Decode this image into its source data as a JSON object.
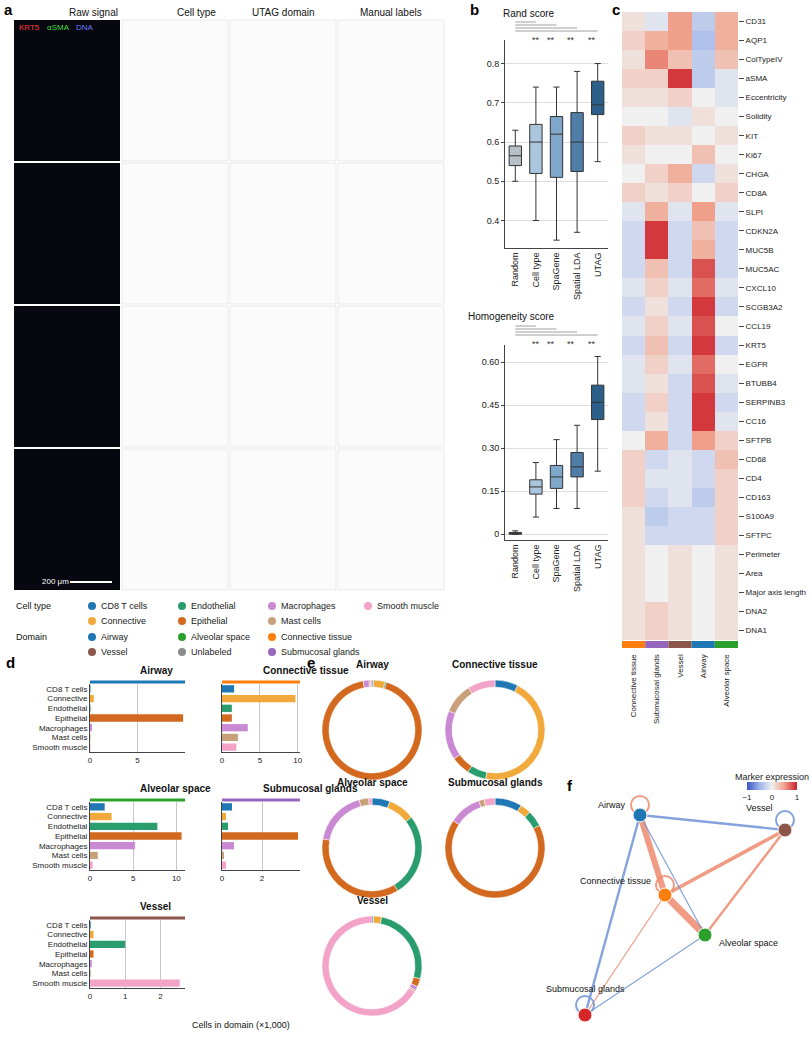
{
  "panel_labels": [
    "a",
    "b",
    "c",
    "d",
    "e",
    "f"
  ],
  "panel_a": {
    "columns": [
      "Raw signal",
      "Cell type",
      "UTAG domain",
      "Manual labels"
    ],
    "rows": 4,
    "stains": [
      {
        "name": "KRT5",
        "color": "#ff3b3b"
      },
      {
        "name": "αSMA",
        "color": "#3fdc3f"
      },
      {
        "name": "DNA",
        "color": "#6b7bff"
      }
    ],
    "scale_bar": "200 μm"
  },
  "legend": {
    "cell_type_title": "Cell type",
    "cell_types": [
      {
        "name": "CD8 T cells",
        "color": "#1f77b4"
      },
      {
        "name": "Connective",
        "color": "#f2a93b"
      },
      {
        "name": "Endothelial",
        "color": "#2a9d6e"
      },
      {
        "name": "Epithelial",
        "color": "#d2691e"
      },
      {
        "name": "Macrophages",
        "color": "#c989d3"
      },
      {
        "name": "Mast cells",
        "color": "#c8a07a"
      },
      {
        "name": "Smooth muscle",
        "color": "#f4a3c8"
      }
    ],
    "domain_title": "Domain",
    "domains": [
      {
        "name": "Airway",
        "color": "#1f77b4"
      },
      {
        "name": "Vessel",
        "color": "#8c564b"
      },
      {
        "name": "Alveolar space",
        "color": "#2ca02c"
      },
      {
        "name": "Unlabeled",
        "color": "#8c8c8c"
      },
      {
        "name": "Connective tissue",
        "color": "#ff7f0e"
      },
      {
        "name": "Submucosal glands",
        "color": "#9467bd"
      }
    ]
  },
  "chart_data": [
    {
      "type": "box",
      "title": "Rand score",
      "categories": [
        "Random",
        "Cell type",
        "SpaGene",
        "Spatial LDA",
        "UTAG"
      ],
      "stats": {
        "q1": [
          0.54,
          0.52,
          0.51,
          0.525,
          0.67
        ],
        "median": [
          0.565,
          0.6,
          0.62,
          0.6,
          0.695
        ],
        "q3": [
          0.59,
          0.645,
          0.665,
          0.675,
          0.755
        ],
        "lowerfence": [
          0.5,
          0.4,
          0.35,
          0.37,
          0.55
        ],
        "upperfence": [
          0.63,
          0.74,
          0.74,
          0.78,
          0.8
        ]
      },
      "colors": [
        "#b7bfc7",
        "#a9c6de",
        "#7ea7c9",
        "#4f7ea8",
        "#2c5f8a"
      ],
      "significance": [
        null,
        "**",
        "**",
        "**",
        "**"
      ],
      "ylim": [
        0.33,
        0.86
      ],
      "yticks": [
        0.4,
        0.5,
        0.6,
        0.7,
        0.8
      ],
      "grid": true
    },
    {
      "type": "box",
      "title": "Homogeneity score",
      "categories": [
        "Random",
        "Cell type",
        "SpaGene",
        "Spatial LDA",
        "UTAG"
      ],
      "stats": {
        "q1": [
          0.0,
          0.14,
          0.16,
          0.2,
          0.4
        ],
        "median": [
          0.003,
          0.165,
          0.2,
          0.235,
          0.46
        ],
        "q3": [
          0.006,
          0.19,
          0.24,
          0.285,
          0.52
        ],
        "lowerfence": [
          0.0,
          0.06,
          0.09,
          0.09,
          0.22
        ],
        "upperfence": [
          0.012,
          0.25,
          0.33,
          0.38,
          0.62
        ]
      },
      "colors": [
        "#b7bfc7",
        "#a9c6de",
        "#7ea7c9",
        "#4f7ea8",
        "#2c5f8a"
      ],
      "significance": [
        null,
        "**",
        "**",
        "**",
        "**"
      ],
      "ylim": [
        -0.02,
        0.66
      ],
      "yticks": [
        0,
        0.15,
        {
          "value": 0.3,
          "label": "0.30"
        },
        0.45,
        {
          "value": 0.6,
          "label": "0.60"
        }
      ],
      "grid": true
    },
    {
      "type": "heatmap",
      "rows": [
        "CD31",
        "AQP1",
        "ColTypeIV",
        "aSMA",
        "Eccentricity",
        "Solidity",
        "KIT",
        "Ki67",
        "CHGA",
        "CD8A",
        "SLPI",
        "CDKN2A",
        "MUC5B",
        "MUC5AC",
        "CXCL10",
        "SCGB3A2",
        "CCL19",
        "KRT5",
        "EGFR",
        "BTUBB4",
        "SERPINB3",
        "CC16",
        "SFTPB",
        "CD68",
        "CD4",
        "CD163",
        "S100A9",
        "SFTPC",
        "Perimeter",
        "Area",
        "Major axis length",
        "DNA2",
        "DNA1"
      ],
      "columns": [
        "Connective tissue",
        "Submucosal glands",
        "Vessel",
        "Airway",
        "Alveolar space"
      ],
      "column_colors": [
        "#ff7f0e",
        "#9467bd",
        "#8c564b",
        "#1f77b4",
        "#2ca02c"
      ],
      "cells": [
        [
          0.1,
          -0.1,
          0.5,
          -0.3,
          0.4
        ],
        [
          0.2,
          0.4,
          0.5,
          -0.4,
          0.4
        ],
        [
          0.1,
          0.6,
          0.3,
          -0.3,
          0.3
        ],
        [
          0.2,
          0.2,
          0.9,
          -0.3,
          -0.1
        ],
        [
          0.1,
          0.1,
          0.2,
          0.0,
          -0.1
        ],
        [
          0.0,
          0.0,
          -0.1,
          0.1,
          0.0
        ],
        [
          0.2,
          0.1,
          0.1,
          0.0,
          0.1
        ],
        [
          0.1,
          0.0,
          0.0,
          0.3,
          0.0
        ],
        [
          0.0,
          0.2,
          0.4,
          -0.2,
          0.1
        ],
        [
          0.2,
          0.1,
          0.2,
          0.0,
          0.2
        ],
        [
          -0.1,
          0.4,
          -0.1,
          0.5,
          -0.1
        ],
        [
          -0.2,
          0.9,
          -0.2,
          0.3,
          -0.2
        ],
        [
          -0.2,
          0.9,
          -0.2,
          0.4,
          -0.2
        ],
        [
          -0.2,
          0.3,
          -0.2,
          0.8,
          -0.2
        ],
        [
          -0.1,
          0.2,
          -0.1,
          0.7,
          -0.1
        ],
        [
          -0.2,
          0.1,
          -0.2,
          0.9,
          -0.2
        ],
        [
          -0.1,
          0.2,
          -0.1,
          0.8,
          0.0
        ],
        [
          -0.2,
          0.3,
          -0.2,
          0.9,
          -0.2
        ],
        [
          -0.1,
          0.2,
          -0.1,
          0.7,
          0.0
        ],
        [
          -0.1,
          0.1,
          -0.2,
          0.8,
          -0.1
        ],
        [
          -0.2,
          0.2,
          -0.2,
          0.9,
          -0.2
        ],
        [
          -0.2,
          0.1,
          -0.2,
          0.9,
          -0.1
        ],
        [
          0.0,
          0.4,
          -0.2,
          0.5,
          0.2
        ],
        [
          0.2,
          -0.2,
          -0.1,
          -0.2,
          0.3
        ],
        [
          0.2,
          -0.1,
          -0.1,
          -0.2,
          0.2
        ],
        [
          0.2,
          -0.2,
          -0.1,
          -0.3,
          0.2
        ],
        [
          0.1,
          -0.3,
          -0.2,
          -0.2,
          0.2
        ],
        [
          0.1,
          -0.2,
          -0.2,
          -0.2,
          0.2
        ],
        [
          0.1,
          0.0,
          0.1,
          0.0,
          0.1
        ],
        [
          0.1,
          0.0,
          0.1,
          0.0,
          0.1
        ],
        [
          0.1,
          0.0,
          0.1,
          0.0,
          0.1
        ],
        [
          0.1,
          0.2,
          0.1,
          0.0,
          0.1
        ],
        [
          0.1,
          0.2,
          0.1,
          0.0,
          0.1
        ]
      ],
      "colorbar": {
        "title": "Marker expression",
        "range": [
          -1,
          1
        ],
        "ticks": [
          {
            "value": -1,
            "label": "−1"
          },
          0,
          1
        ]
      }
    },
    {
      "type": "bar",
      "orientation": "horizontal",
      "title": "Airway",
      "color": "#1f77b4",
      "categories": [
        "CD8 T cells",
        "Connective",
        "Endothelial",
        "Epithelial",
        "Macrophages",
        "Mast cells",
        "Smooth muscle"
      ],
      "values": [
        0.05,
        0.4,
        0.05,
        9.8,
        0.2,
        0.05,
        0.05
      ],
      "colors": [
        "#1f77b4",
        "#f2a93b",
        "#2a9d6e",
        "#d2691e",
        "#c989d3",
        "#c8a07a",
        "#f4a3c8"
      ],
      "xlim": [
        0,
        10
      ],
      "xticks": [
        0,
        5
      ],
      "grid": true
    },
    {
      "type": "bar",
      "orientation": "horizontal",
      "title": "Connective tissue",
      "color": "#ff7f0e",
      "categories": [
        "CD8 T cells",
        "Connective",
        "Endothelial",
        "Epithelial",
        "Macrophages",
        "Mast cells",
        "Smooth muscle"
      ],
      "values": [
        1.6,
        9.7,
        1.3,
        1.3,
        3.4,
        2.1,
        1.9
      ],
      "colors": [
        "#1f77b4",
        "#f2a93b",
        "#2a9d6e",
        "#d2691e",
        "#c989d3",
        "#c8a07a",
        "#f4a3c8"
      ],
      "xlim": [
        0,
        10.3
      ],
      "xticks": [
        0,
        5,
        10
      ],
      "grid": true,
      "tick_labels": "x"
    },
    {
      "type": "bar",
      "orientation": "horizontal",
      "title": "Alveolar space",
      "color": "#2ca02c",
      "categories": [
        "CD8 T cells",
        "Connective",
        "Endothelial",
        "Epithelial",
        "Macrophages",
        "Mast cells",
        "Smooth muscle"
      ],
      "values": [
        1.7,
        2.5,
        7.8,
        10.6,
        5.2,
        0.9,
        0.3
      ],
      "colors": [
        "#1f77b4",
        "#f2a93b",
        "#2a9d6e",
        "#d2691e",
        "#c989d3",
        "#c8a07a",
        "#f4a3c8"
      ],
      "xlim": [
        0,
        11
      ],
      "xticks": [
        0,
        5,
        10
      ],
      "grid": true
    },
    {
      "type": "bar",
      "orientation": "horizontal",
      "title": "Submucosal glands",
      "color": "#9467bd",
      "categories": [
        "CD8 T cells",
        "Connective",
        "Endothelial",
        "Epithelial",
        "Macrophages",
        "Mast cells",
        "Smooth muscle"
      ],
      "values": [
        0.5,
        0.2,
        0.3,
        3.8,
        0.6,
        0.1,
        0.2
      ],
      "colors": [
        "#1f77b4",
        "#f2a93b",
        "#2a9d6e",
        "#d2691e",
        "#c989d3",
        "#c8a07a",
        "#f4a3c8"
      ],
      "xlim": [
        0,
        3.9
      ],
      "xticks": [
        0,
        2
      ],
      "grid": true,
      "tick_labels": "x"
    },
    {
      "type": "bar",
      "orientation": "horizontal",
      "title": "Vessel",
      "color": "#8c564b",
      "categories": [
        "CD8 T cells",
        "Connective",
        "Endothelial",
        "Epithelial",
        "Macrophages",
        "Mast cells",
        "Smooth muscle"
      ],
      "values": [
        0.02,
        0.1,
        1.0,
        0.1,
        0.05,
        0.02,
        2.55
      ],
      "colors": [
        "#1f77b4",
        "#f2a93b",
        "#2a9d6e",
        "#d2691e",
        "#c989d3",
        "#c8a07a",
        "#f4a3c8"
      ],
      "xlim": [
        0,
        2.7
      ],
      "xticks": [
        0,
        1,
        2
      ],
      "grid": true
    }
  ],
  "panel_d_xlabel": "Cells in domain (×1,000)",
  "chords": {
    "titles": [
      "Airway",
      "Connective tissue",
      "Alveolar space",
      "Submucosal glands",
      "Vessel"
    ]
  },
  "network": {
    "nodes": [
      {
        "label": "Airway",
        "color": "#1f77b4"
      },
      {
        "label": "Vessel",
        "color": "#8c564b"
      },
      {
        "label": "Connective tissue",
        "color": "#ff7f0e"
      },
      {
        "label": "Alveolar space",
        "color": "#2ca02c"
      },
      {
        "label": "Submucosal glands",
        "color": "#d62728"
      }
    ],
    "edges": [
      {
        "source": 0,
        "target": 2,
        "color": "#ee8a6e",
        "weight": 5
      },
      {
        "source": 2,
        "target": 3,
        "color": "#ee8a6e",
        "weight": 6
      },
      {
        "source": 2,
        "target": 1,
        "color": "#ee8a6e",
        "weight": 3
      },
      {
        "source": 3,
        "target": 1,
        "color": "#ee8a6e",
        "weight": 2
      },
      {
        "source": 0,
        "target": 1,
        "color": "#6f93d6",
        "weight": 2
      },
      {
        "source": 0,
        "target": 4,
        "color": "#6f93d6",
        "weight": 2
      },
      {
        "source": 0,
        "target": 3,
        "color": "#6f93d6",
        "weight": 1
      },
      {
        "source": 2,
        "target": 4,
        "color": "#ee8a6e",
        "weight": 1
      },
      {
        "source": 3,
        "target": 4,
        "color": "#6f93d6",
        "weight": 1
      }
    ],
    "loops": [
      {
        "node": 0,
        "color": "#ee8a6e"
      },
      {
        "node": 1,
        "color": "#6f93d6"
      },
      {
        "node": 2,
        "color": "#ee8a6e"
      },
      {
        "node": 4,
        "color": "#6f93d6"
      }
    ]
  }
}
